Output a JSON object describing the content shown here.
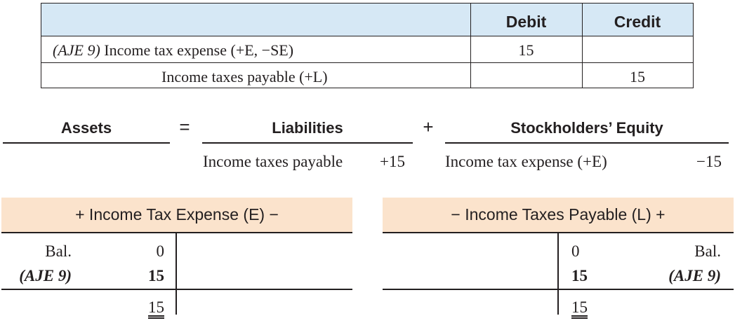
{
  "journal_entry": {
    "headers": {
      "debit": "Debit",
      "credit": "Credit"
    },
    "rows": [
      {
        "ref": "(AJE 9)",
        "account": " Income tax expense (+E, −SE)",
        "debit": "15",
        "credit": ""
      },
      {
        "ref": "",
        "account": "Income taxes payable (+L)",
        "debit": "",
        "credit": "15"
      }
    ]
  },
  "equation": {
    "assets": "Assets",
    "equals": "=",
    "liabilities": "Liabilities",
    "plus": "+",
    "equity": "Stockholders’ Equity",
    "liability_item": {
      "label": "Income taxes payable",
      "amount": "+15"
    },
    "equity_item": {
      "label": "Income tax expense (+E)",
      "amount": "−15"
    }
  },
  "t_accounts": [
    {
      "title": "+ Income Tax Expense (E) −",
      "rows": [
        {
          "label": "Bal.",
          "amount": "0"
        },
        {
          "label": "(AJE 9)",
          "amount": "15"
        }
      ],
      "ending": "15"
    },
    {
      "title": "− Income Taxes Payable (L) +",
      "rows": [
        {
          "label": "Bal.",
          "amount": "0"
        },
        {
          "label": "(AJE 9)",
          "amount": "15"
        }
      ],
      "ending": "15"
    }
  ]
}
